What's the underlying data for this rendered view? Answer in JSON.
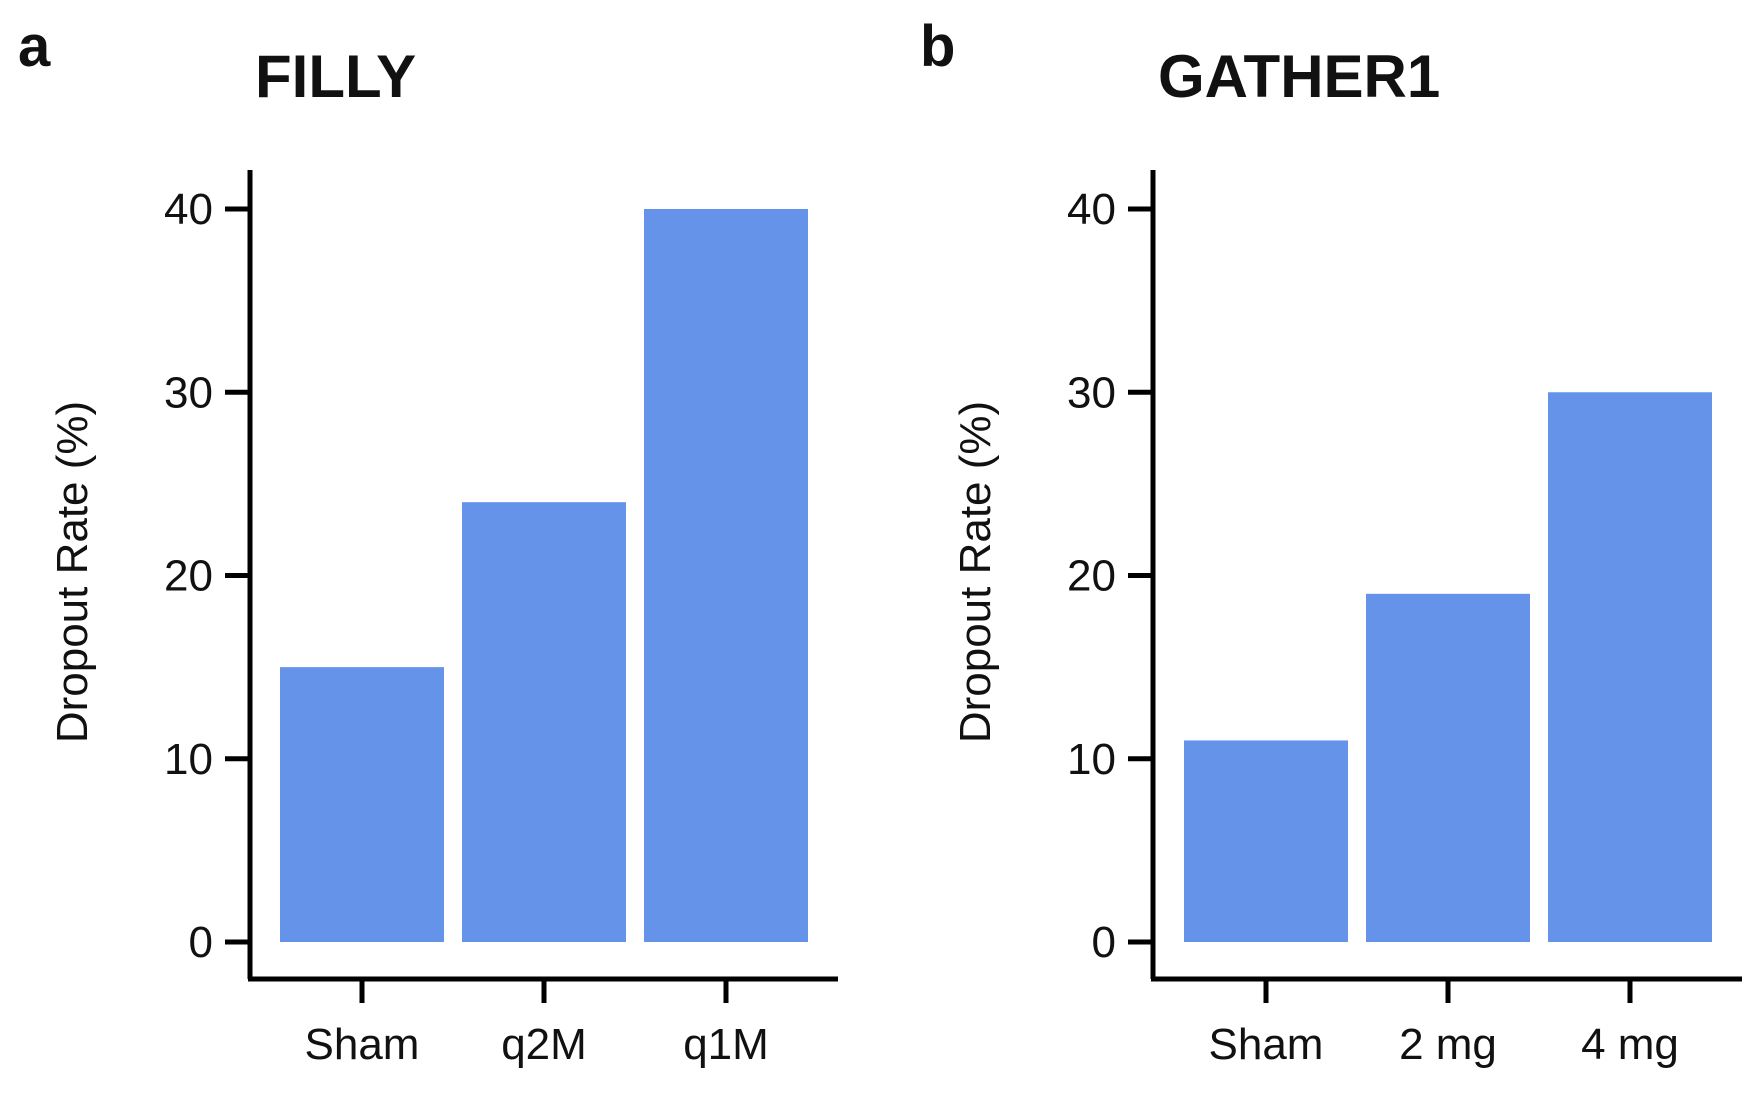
{
  "colors": {
    "bar": "#6593ea",
    "axis": "#000000"
  },
  "chart_data": [
    {
      "panel_letter": "a",
      "type": "bar",
      "title": "FILLY",
      "categories": [
        "Sham",
        "q2M",
        "q1M"
      ],
      "values": [
        15,
        24,
        40
      ],
      "ylabel": "Dropout Rate (%)",
      "xlabel": "",
      "ylim": [
        0,
        40
      ],
      "yticks": [
        "0",
        "10",
        "20",
        "30",
        "40"
      ],
      "grid": false
    },
    {
      "panel_letter": "b",
      "type": "bar",
      "title": "GATHER1",
      "categories": [
        "Sham",
        "2 mg",
        "4 mg"
      ],
      "values": [
        11,
        19,
        30
      ],
      "ylabel": "Dropout Rate (%)",
      "xlabel": "",
      "ylim": [
        0,
        40
      ],
      "yticks": [
        "0",
        "10",
        "20",
        "30",
        "40"
      ],
      "grid": false
    }
  ]
}
